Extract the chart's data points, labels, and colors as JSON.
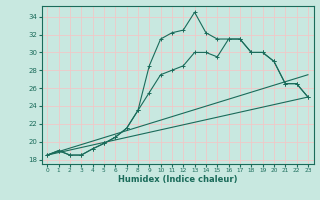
{
  "xlabel": "Humidex (Indice chaleur)",
  "bg_color": "#c8e8e0",
  "grid_color": "#f0c8c8",
  "line_color": "#1a6b5a",
  "xlim": [
    -0.5,
    23.5
  ],
  "ylim": [
    17.5,
    35.2
  ],
  "xticks": [
    0,
    1,
    2,
    3,
    4,
    5,
    6,
    7,
    8,
    9,
    10,
    11,
    12,
    13,
    14,
    15,
    16,
    17,
    18,
    19,
    20,
    21,
    22,
    23
  ],
  "yticks": [
    18,
    20,
    22,
    24,
    26,
    28,
    30,
    32,
    34
  ],
  "line1_x": [
    0,
    1,
    2,
    3,
    4,
    5,
    6,
    7,
    8,
    9,
    10,
    11,
    12,
    13,
    14,
    15,
    16,
    17,
    18,
    19,
    20,
    21,
    22,
    23
  ],
  "line1_y": [
    18.5,
    19.0,
    18.5,
    18.5,
    19.2,
    19.8,
    20.5,
    21.5,
    23.5,
    28.5,
    31.5,
    32.2,
    32.5,
    34.5,
    32.2,
    31.5,
    31.5,
    31.5,
    30.0,
    30.0,
    29.0,
    26.5,
    26.5,
    25.0
  ],
  "line2_x": [
    0,
    1,
    2,
    3,
    4,
    5,
    6,
    7,
    8,
    9,
    10,
    11,
    12,
    13,
    14,
    15,
    16,
    17,
    18,
    19,
    20,
    21,
    22,
    23
  ],
  "line2_y": [
    18.5,
    19.0,
    18.5,
    18.5,
    19.2,
    19.8,
    20.5,
    21.5,
    23.5,
    25.5,
    27.5,
    28.0,
    28.5,
    30.0,
    30.0,
    29.5,
    31.5,
    31.5,
    30.0,
    30.0,
    29.0,
    26.5,
    26.5,
    25.0
  ],
  "line3_x": [
    0,
    23
  ],
  "line3_y": [
    18.5,
    25.0
  ],
  "line4_x": [
    0,
    23
  ],
  "line4_y": [
    18.5,
    27.5
  ]
}
